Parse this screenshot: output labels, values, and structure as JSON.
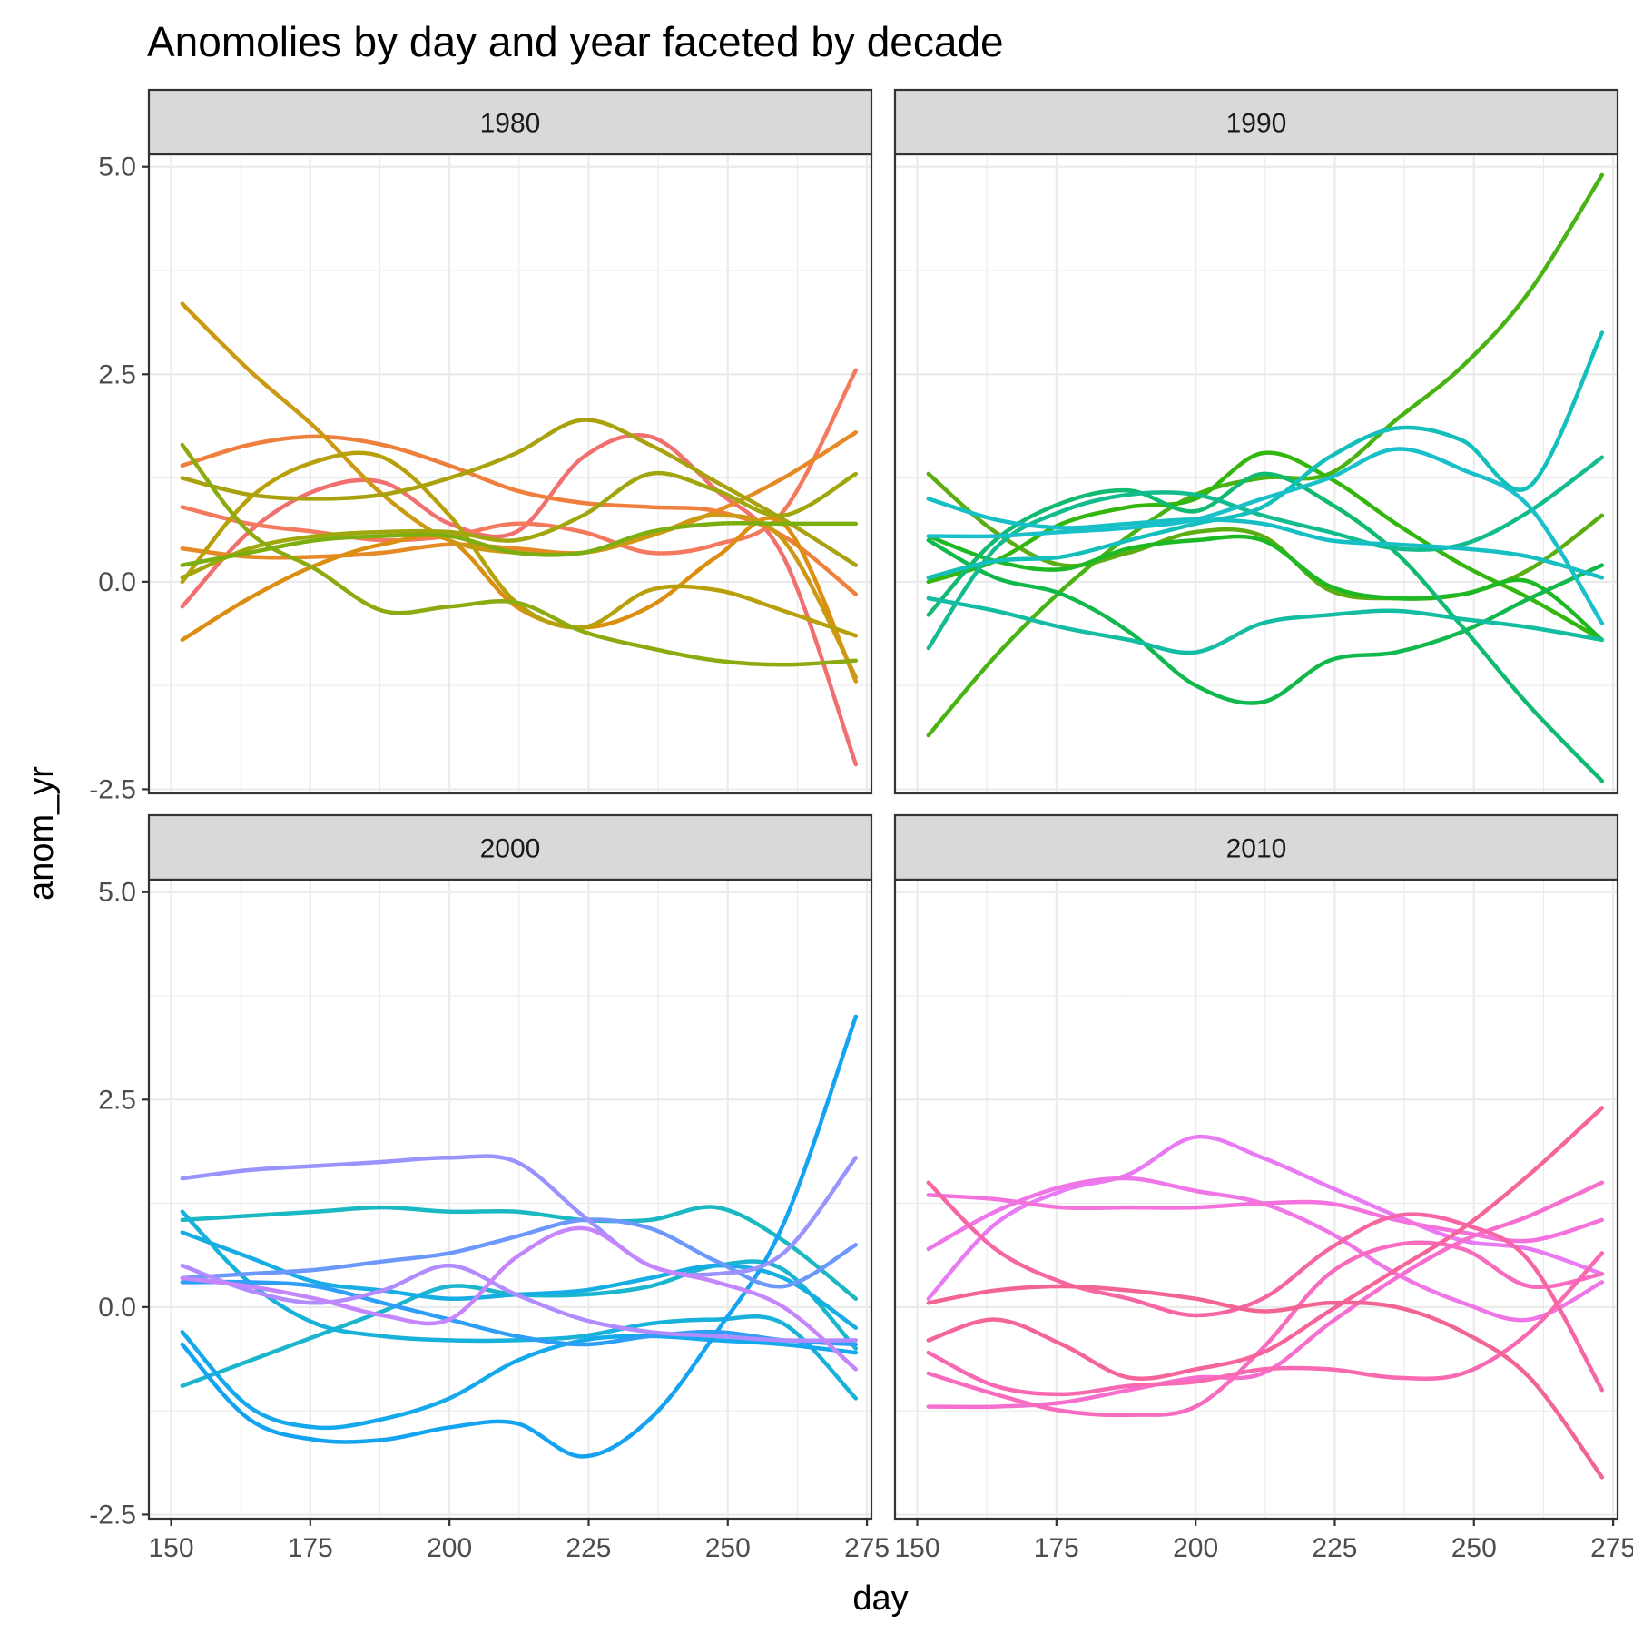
{
  "chart_data": {
    "type": "line",
    "title": "Anomolies by day and year faceted by decade",
    "xlabel": "day",
    "ylabel": "anom_yr",
    "xlim": [
      146,
      275.8
    ],
    "ylim": [
      -2.55,
      5.15
    ],
    "x_ticks": [
      150,
      175,
      200,
      225,
      250,
      275
    ],
    "x_tick_labels": [
      "150",
      "175",
      "200",
      "225",
      "250",
      "275"
    ],
    "y_ticks": [
      -2.5,
      0.0,
      2.5,
      5.0
    ],
    "y_tick_labels": [
      "-2.5",
      "0.0",
      "2.5",
      "5.0"
    ],
    "grid": true,
    "x_sample_days": [
      152,
      164,
      176,
      188,
      200,
      212,
      224,
      236,
      248,
      260,
      273
    ],
    "facets": [
      {
        "label": "1980",
        "series": [
          {
            "color": "#F07070",
            "values": [
              -0.3,
              0.6,
              1.1,
              1.2,
              0.7,
              0.6,
              1.5,
              1.75,
              1.1,
              0.3,
              -2.2
            ]
          },
          {
            "color": "#F37A5E",
            "values": [
              0.9,
              0.7,
              0.6,
              0.5,
              0.55,
              0.7,
              0.6,
              0.35,
              0.45,
              0.85,
              2.55
            ]
          },
          {
            "color": "#EF7F3C",
            "values": [
              1.4,
              1.65,
              1.75,
              1.65,
              1.4,
              1.1,
              0.95,
              0.9,
              0.85,
              0.55,
              -0.15
            ]
          },
          {
            "color": "#E58A25",
            "values": [
              0.4,
              0.3,
              0.3,
              0.35,
              0.45,
              0.4,
              0.35,
              0.55,
              0.85,
              1.25,
              1.8
            ]
          },
          {
            "color": "#DC8E10",
            "values": [
              -0.7,
              -0.2,
              0.2,
              0.45,
              0.5,
              -0.3,
              -0.55,
              -0.3,
              0.3,
              0.7,
              -1.2
            ]
          },
          {
            "color": "#CC9A12",
            "values": [
              3.35,
              2.55,
              1.85,
              1.05,
              0.5,
              0.35,
              0.35,
              0.55,
              0.8,
              0.5,
              -1.15
            ]
          },
          {
            "color": "#B8A00A",
            "values": [
              0.0,
              1.0,
              1.45,
              1.5,
              0.8,
              -0.25,
              -0.55,
              -0.1,
              -0.1,
              -0.35,
              -0.65
            ]
          },
          {
            "color": "#A9A10E",
            "values": [
              1.25,
              1.05,
              1.0,
              1.05,
              1.25,
              1.55,
              1.95,
              1.65,
              1.2,
              0.75,
              0.2
            ]
          },
          {
            "color": "#9FA70D",
            "values": [
              0.05,
              0.4,
              0.55,
              0.6,
              0.6,
              0.5,
              0.8,
              1.3,
              1.1,
              0.8,
              1.3
            ]
          },
          {
            "color": "#8CAB10",
            "values": [
              1.65,
              0.6,
              0.15,
              -0.35,
              -0.3,
              -0.25,
              -0.6,
              -0.8,
              -0.95,
              -1.0,
              -0.95
            ]
          },
          {
            "color": "#7DAE10",
            "values": [
              0.2,
              0.35,
              0.5,
              0.55,
              0.55,
              0.35,
              0.35,
              0.6,
              0.7,
              0.7,
              0.7
            ]
          }
        ]
      },
      {
        "label": "1990",
        "series": [
          {
            "color": "#5CAD12",
            "values": [
              1.3,
              0.6,
              0.2,
              0.35,
              0.6,
              0.55,
              -0.1,
              -0.2,
              -0.15,
              0.15,
              0.8
            ]
          },
          {
            "color": "#48B312",
            "values": [
              -1.85,
              -0.9,
              -0.1,
              0.55,
              1.05,
              1.25,
              1.3,
              1.95,
              2.6,
              3.5,
              4.9
            ]
          },
          {
            "color": "#33B70E",
            "values": [
              0.0,
              0.25,
              0.7,
              0.9,
              1.0,
              1.55,
              1.25,
              0.7,
              0.2,
              -0.2,
              -0.7
            ]
          },
          {
            "color": "#1DB924",
            "values": [
              0.55,
              0.25,
              0.15,
              0.4,
              0.5,
              0.5,
              -0.05,
              -0.2,
              -0.15,
              0.0,
              -0.7
            ]
          },
          {
            "color": "#11B84C",
            "values": [
              0.5,
              0.05,
              -0.15,
              -0.6,
              -1.25,
              -1.45,
              -0.95,
              -0.85,
              -0.6,
              -0.2,
              0.2
            ]
          },
          {
            "color": "#10BA70",
            "values": [
              -0.4,
              0.5,
              0.95,
              1.1,
              0.85,
              1.3,
              0.95,
              0.35,
              -0.55,
              -1.5,
              -2.4
            ]
          },
          {
            "color": "#12BC8E",
            "values": [
              -0.8,
              0.4,
              0.85,
              1.05,
              1.05,
              0.8,
              0.6,
              0.4,
              0.45,
              0.85,
              1.5
            ]
          },
          {
            "color": "#14BCA2",
            "values": [
              -0.2,
              -0.35,
              -0.55,
              -0.7,
              -0.85,
              -0.5,
              -0.4,
              -0.35,
              -0.45,
              -0.55,
              -0.7
            ]
          },
          {
            "color": "#12BFBA",
            "values": [
              0.05,
              0.25,
              0.3,
              0.5,
              0.7,
              0.9,
              1.5,
              1.85,
              1.7,
              1.15,
              3.0
            ]
          },
          {
            "color": "#15BFC4",
            "values": [
              1.0,
              0.75,
              0.65,
              0.7,
              0.75,
              0.7,
              0.5,
              0.45,
              0.4,
              0.3,
              0.05
            ]
          },
          {
            "color": "#19C0CA",
            "values": [
              0.55,
              0.55,
              0.6,
              0.65,
              0.75,
              1.0,
              1.25,
              1.6,
              1.35,
              0.9,
              -0.5
            ]
          }
        ]
      },
      {
        "label": "2000",
        "series": [
          {
            "color": "#1AB9C2",
            "values": [
              1.05,
              1.1,
              1.15,
              1.2,
              1.15,
              1.15,
              1.05,
              1.05,
              1.2,
              0.8,
              0.1
            ]
          },
          {
            "color": "#1BB5CE",
            "values": [
              -0.95,
              -0.65,
              -0.35,
              -0.05,
              0.25,
              0.15,
              0.15,
              0.25,
              0.5,
              0.45,
              -0.5
            ]
          },
          {
            "color": "#18B1DA",
            "values": [
              1.15,
              0.3,
              -0.2,
              -0.35,
              -0.4,
              -0.4,
              -0.35,
              -0.2,
              -0.15,
              -0.2,
              -1.1
            ]
          },
          {
            "color": "#16ADE4",
            "values": [
              0.9,
              0.6,
              0.3,
              0.2,
              0.1,
              0.15,
              0.2,
              0.35,
              0.5,
              0.35,
              -0.25
            ]
          },
          {
            "color": "#14A8EC",
            "values": [
              -0.3,
              -1.2,
              -1.45,
              -1.35,
              -1.1,
              -0.65,
              -0.4,
              -0.35,
              -0.4,
              -0.45,
              -0.55
            ]
          },
          {
            "color": "#14A3F1",
            "values": [
              -0.45,
              -1.35,
              -1.6,
              -1.6,
              -1.45,
              -1.4,
              -1.8,
              -1.35,
              -0.3,
              1.0,
              3.5
            ]
          },
          {
            "color": "#2E9EF6",
            "values": [
              0.3,
              0.3,
              0.25,
              0.05,
              -0.15,
              -0.35,
              -0.45,
              -0.35,
              -0.3,
              -0.4,
              -0.45
            ]
          },
          {
            "color": "#6D98FB",
            "values": [
              0.35,
              0.4,
              0.45,
              0.55,
              0.65,
              0.85,
              1.05,
              0.95,
              0.55,
              0.25,
              0.75
            ]
          },
          {
            "color": "#9A92FD",
            "values": [
              1.55,
              1.65,
              1.7,
              1.75,
              1.8,
              1.75,
              1.1,
              0.5,
              0.4,
              0.65,
              1.8
            ]
          },
          {
            "color": "#B28CFE",
            "values": [
              0.5,
              0.2,
              0.05,
              0.2,
              0.5,
              0.15,
              -0.15,
              -0.3,
              -0.35,
              -0.4,
              -0.4
            ]
          },
          {
            "color": "#C586FD",
            "values": [
              0.35,
              0.25,
              0.1,
              -0.1,
              -0.15,
              0.6,
              0.95,
              0.5,
              0.3,
              0.0,
              -0.75
            ]
          }
        ]
      },
      {
        "label": "2010",
        "series": [
          {
            "color": "#E87BF4",
            "values": [
              0.1,
              1.0,
              1.4,
              1.6,
              2.05,
              1.8,
              1.45,
              1.1,
              0.8,
              0.7,
              0.4
            ]
          },
          {
            "color": "#EF76E6",
            "values": [
              0.7,
              1.15,
              1.45,
              1.55,
              1.4,
              1.25,
              0.9,
              0.4,
              0.05,
              -0.15,
              0.3
            ]
          },
          {
            "color": "#F372DC",
            "values": [
              1.35,
              1.3,
              1.2,
              1.2,
              1.2,
              1.25,
              1.25,
              1.05,
              0.9,
              0.8,
              1.05
            ]
          },
          {
            "color": "#F66FCF",
            "values": [
              -1.2,
              -1.2,
              -1.15,
              -1.0,
              -0.85,
              -0.8,
              -0.2,
              0.35,
              0.8,
              1.1,
              1.5
            ]
          },
          {
            "color": "#F86BBF",
            "values": [
              -0.8,
              -1.05,
              -1.25,
              -1.3,
              -1.2,
              -0.5,
              0.4,
              0.75,
              0.7,
              0.25,
              0.4
            ]
          },
          {
            "color": "#F869B1",
            "values": [
              -0.55,
              -0.95,
              -1.05,
              -0.95,
              -0.9,
              -0.75,
              -0.75,
              -0.85,
              -0.8,
              -0.3,
              0.65
            ]
          },
          {
            "color": "#F766A4",
            "values": [
              1.5,
              0.7,
              0.3,
              0.1,
              -0.1,
              0.1,
              0.7,
              1.1,
              1.0,
              0.55,
              -1.0
            ]
          },
          {
            "color": "#F5649A",
            "values": [
              -0.4,
              -0.15,
              -0.45,
              -0.85,
              -0.75,
              -0.55,
              -0.05,
              0.45,
              0.95,
              1.6,
              2.4
            ]
          },
          {
            "color": "#F26491",
            "values": [
              0.05,
              0.2,
              0.25,
              0.2,
              0.1,
              -0.05,
              0.05,
              0.0,
              -0.3,
              -0.85,
              -2.05
            ]
          }
        ]
      }
    ]
  }
}
